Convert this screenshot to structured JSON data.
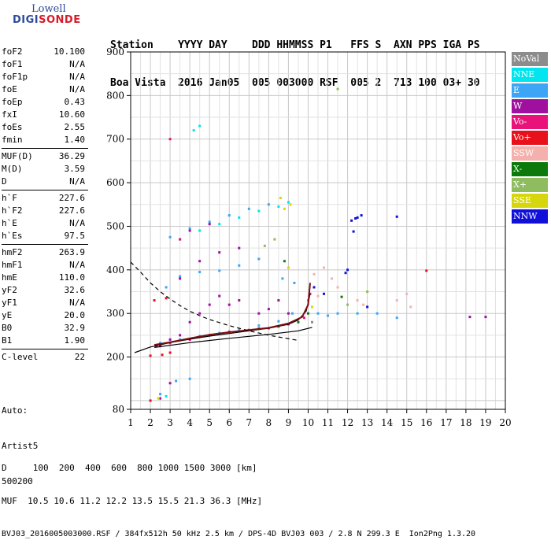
{
  "logo": {
    "line1": "Lowell",
    "line2_a": "DIGI",
    "line2_b": "SONDE"
  },
  "header": {
    "line1": "Station    YYYY DAY    DDD HHMMSS P1   FFS S  AXN PPS IGA PS",
    "line2": "Boa Vista  2016 Jan05  005 003000 RSF  005 2  713 100 03+ 30"
  },
  "params": [
    [
      {
        "k": "foF2",
        "v": "10.100"
      },
      {
        "k": "foF1",
        "v": "N/A"
      },
      {
        "k": "foF1p",
        "v": "N/A"
      },
      {
        "k": "foE",
        "v": "N/A"
      },
      {
        "k": "foEp",
        "v": "0.43"
      },
      {
        "k": "fxI",
        "v": "10.60"
      },
      {
        "k": "foEs",
        "v": "2.55"
      },
      {
        "k": "fmin",
        "v": "1.40"
      }
    ],
    [
      {
        "k": "MUF(D)",
        "v": "36.29"
      },
      {
        "k": "M(D)",
        "v": "3.59"
      },
      {
        "k": "D",
        "v": "N/A"
      }
    ],
    [
      {
        "k": "h`F",
        "v": "227.6"
      },
      {
        "k": "h`F2",
        "v": "227.6"
      },
      {
        "k": "h`E",
        "v": "N/A"
      },
      {
        "k": "h`Es",
        "v": "97.5"
      }
    ],
    [
      {
        "k": "hmF2",
        "v": "263.9"
      },
      {
        "k": "hmF1",
        "v": "N/A"
      },
      {
        "k": "hmE",
        "v": "110.0"
      },
      {
        "k": "yF2",
        "v": "32.6"
      },
      {
        "k": "yF1",
        "v": "N/A"
      },
      {
        "k": "yE",
        "v": "20.0"
      },
      {
        "k": "B0",
        "v": "32.9"
      },
      {
        "k": "B1",
        "v": "1.90"
      }
    ],
    [
      {
        "k": "C-level",
        "v": "22"
      }
    ]
  ],
  "auto": {
    "l1": "Auto:",
    "l2": "Artist5",
    "l3": "500200"
  },
  "footer": {
    "d_row": "D     100  200  400  600  800 1000 1500 3000 [km]",
    "muf_row": "MUF  10.5 10.6 11.2 12.2 13.5 15.5 21.3 36.3 [MHz]",
    "file_row": "BVJ03_2016005003000.RSF / 384fx512h 50 kHz 2.5 km / DPS-4D BVJ03 003 / 2.8 N 299.3 E  Ion2Png 1.3.20"
  },
  "legend": [
    {
      "label": "NoVal",
      "color": "#8c8c8c"
    },
    {
      "label": "NNE",
      "color": "#00e5ee"
    },
    {
      "label": "E",
      "color": "#3da5f5"
    },
    {
      "label": "W",
      "color": "#a0109e"
    },
    {
      "label": "Vo-",
      "color": "#e8127a"
    },
    {
      "label": "Vo+",
      "color": "#e8101a"
    },
    {
      "label": "SSW",
      "color": "#f4b0ac"
    },
    {
      "label": "X-",
      "color": "#0b7a0b"
    },
    {
      "label": "X+",
      "color": "#8ebc5e"
    },
    {
      "label": "SSE",
      "color": "#d6d60e"
    },
    {
      "label": "NNW",
      "color": "#1010d8"
    }
  ],
  "chart_data": {
    "type": "scatter",
    "xlabel": "",
    "ylabel": "",
    "xlim": [
      1,
      20
    ],
    "ylim": [
      80,
      900
    ],
    "x_ticks": [
      "1",
      "2",
      "3",
      "4",
      "5",
      "6",
      "7",
      "8",
      "9",
      "10",
      "11",
      "12",
      "13",
      "14",
      "15",
      "16",
      "17",
      "18",
      "19",
      "20"
    ],
    "y_ticks": [
      "80",
      "200",
      "300",
      "400",
      "500",
      "600",
      "700",
      "800",
      "900"
    ],
    "series": [
      {
        "name": "E",
        "color": "#3da5f5",
        "points": [
          [
            2.5,
            232
          ],
          [
            3.5,
            240
          ],
          [
            4.5,
            248
          ],
          [
            5.5,
            255
          ],
          [
            6.5,
            262
          ],
          [
            7.5,
            272
          ],
          [
            8.5,
            282
          ],
          [
            9.2,
            300
          ],
          [
            10.0,
            330
          ],
          [
            10.5,
            300
          ],
          [
            11.0,
            295
          ],
          [
            11.5,
            300
          ],
          [
            12.5,
            300
          ],
          [
            13.5,
            300
          ],
          [
            14.5,
            290
          ],
          [
            8.7,
            380
          ],
          [
            9.3,
            370
          ],
          [
            2.8,
            360
          ],
          [
            3.5,
            385
          ],
          [
            4.5,
            395
          ],
          [
            5.5,
            398
          ],
          [
            6.5,
            410
          ],
          [
            7.5,
            425
          ],
          [
            3.0,
            475
          ],
          [
            4.0,
            495
          ],
          [
            5.0,
            510
          ],
          [
            6.0,
            525
          ],
          [
            7.0,
            540
          ],
          [
            8.0,
            550
          ],
          [
            4.0,
            150
          ],
          [
            3.3,
            145
          ],
          [
            2.5,
            115
          ]
        ]
      },
      {
        "name": "NNE",
        "color": "#00e5ee",
        "points": [
          [
            3.5,
            470
          ],
          [
            4.5,
            490
          ],
          [
            5.5,
            505
          ],
          [
            6.5,
            520
          ],
          [
            7.5,
            535
          ],
          [
            8.5,
            545
          ],
          [
            9.0,
            555
          ],
          [
            4.2,
            720
          ],
          [
            4.5,
            730
          ],
          [
            2.8,
            110
          ]
        ]
      },
      {
        "name": "W",
        "color": "#a0109e",
        "points": [
          [
            2.5,
            225
          ],
          [
            3.0,
            240
          ],
          [
            3.5,
            250
          ],
          [
            4.0,
            280
          ],
          [
            4.5,
            300
          ],
          [
            5.0,
            320
          ],
          [
            5.5,
            340
          ],
          [
            6.0,
            320
          ],
          [
            6.5,
            330
          ],
          [
            7.5,
            300
          ],
          [
            8.0,
            310
          ],
          [
            8.5,
            330
          ],
          [
            9.0,
            300
          ],
          [
            3.5,
            380
          ],
          [
            4.5,
            420
          ],
          [
            5.5,
            440
          ],
          [
            6.5,
            450
          ],
          [
            4.0,
            490
          ],
          [
            5.0,
            505
          ],
          [
            18.2,
            292
          ],
          [
            19.0,
            292
          ],
          [
            3.0,
            140
          ],
          [
            2.5,
            105
          ]
        ]
      },
      {
        "name": "Vo-",
        "color": "#e8127a",
        "points": [
          [
            2.3,
            225
          ],
          [
            3.0,
            232
          ],
          [
            4.0,
            240
          ],
          [
            5.0,
            250
          ],
          [
            6.0,
            258
          ],
          [
            7.0,
            262
          ],
          [
            8.0,
            266
          ],
          [
            9.0,
            275
          ],
          [
            9.8,
            290
          ],
          [
            10.1,
            345
          ],
          [
            3.5,
            470
          ],
          [
            3.0,
            700
          ]
        ]
      },
      {
        "name": "Vo+",
        "color": "#e8101a",
        "points": [
          [
            2.0,
            203
          ],
          [
            2.6,
            205
          ],
          [
            3.0,
            210
          ],
          [
            2.2,
            330
          ],
          [
            2.8,
            335
          ],
          [
            2.0,
            100
          ],
          [
            16.0,
            398
          ]
        ]
      },
      {
        "name": "SSW",
        "color": "#f4b0ac",
        "points": [
          [
            10.3,
            390
          ],
          [
            10.8,
            405
          ],
          [
            11.2,
            380
          ],
          [
            10.5,
            340
          ],
          [
            12.5,
            330
          ],
          [
            12.8,
            320
          ],
          [
            14.5,
            330
          ],
          [
            15.0,
            345
          ],
          [
            15.2,
            315
          ],
          [
            11.5,
            360
          ]
        ]
      },
      {
        "name": "X-",
        "color": "#0b7a0b",
        "points": [
          [
            7.5,
            265
          ],
          [
            8.5,
            270
          ],
          [
            9.5,
            280
          ],
          [
            10.0,
            300
          ],
          [
            11.7,
            338
          ],
          [
            8.8,
            420
          ]
        ]
      },
      {
        "name": "X+",
        "color": "#8ebc5e",
        "points": [
          [
            11.5,
            815
          ],
          [
            13.0,
            350
          ],
          [
            12.0,
            320
          ],
          [
            7.8,
            455
          ],
          [
            8.3,
            470
          ]
        ]
      },
      {
        "name": "SSE",
        "color": "#d6d60e",
        "points": [
          [
            8.8,
            540
          ],
          [
            9.1,
            550
          ],
          [
            8.6,
            565
          ],
          [
            9.0,
            405
          ],
          [
            2.4,
            105
          ],
          [
            10.2,
            315
          ]
        ]
      },
      {
        "name": "NNW",
        "color": "#1010d8",
        "points": [
          [
            12.2,
            513
          ],
          [
            12.4,
            518
          ],
          [
            12.5,
            520
          ],
          [
            12.7,
            525
          ],
          [
            12.3,
            488
          ],
          [
            13.0,
            315
          ],
          [
            11.9,
            393
          ],
          [
            12.0,
            400
          ],
          [
            14.5,
            522
          ],
          [
            10.8,
            345
          ],
          [
            10.3,
            360
          ]
        ]
      },
      {
        "name": "NoVal",
        "color": "#8c8c8c",
        "points": [
          [
            10.2,
            280
          ]
        ]
      }
    ],
    "profile_curve": {
      "color": "#000000",
      "points": [
        [
          1.2,
          210
        ],
        [
          2.0,
          223
        ],
        [
          3.0,
          233
        ],
        [
          4.0,
          241
        ],
        [
          5.0,
          248
        ],
        [
          6.0,
          254
        ],
        [
          7.0,
          260
        ],
        [
          8.0,
          266
        ],
        [
          9.0,
          275
        ],
        [
          9.5,
          285
        ],
        [
          9.9,
          305
        ],
        [
          10.1,
          345
        ]
      ]
    },
    "trace_curve": {
      "color": "#7a0f0f",
      "points": [
        [
          2.2,
          228
        ],
        [
          3.0,
          234
        ],
        [
          4.0,
          243
        ],
        [
          5.0,
          251
        ],
        [
          6.0,
          257
        ],
        [
          7.0,
          262
        ],
        [
          8.0,
          267
        ],
        [
          9.0,
          277
        ],
        [
          9.7,
          292
        ],
        [
          10.0,
          320
        ],
        [
          10.1,
          370
        ]
      ]
    },
    "lower_curve": {
      "color": "#000000",
      "points": [
        [
          2.2,
          222
        ],
        [
          4.0,
          233
        ],
        [
          6.0,
          243
        ],
        [
          8.0,
          252
        ],
        [
          9.5,
          260
        ],
        [
          10.2,
          268
        ]
      ]
    },
    "dashed_curve": {
      "color": "#000000",
      "points": [
        [
          1.0,
          418
        ],
        [
          1.5,
          395
        ],
        [
          2.0,
          370
        ],
        [
          2.5,
          350
        ],
        [
          3.0,
          333
        ],
        [
          3.5,
          318
        ],
        [
          4.0,
          305
        ],
        [
          4.5,
          295
        ],
        [
          5.0,
          286
        ],
        [
          5.5,
          279
        ],
        [
          6.0,
          272
        ],
        [
          6.5,
          266
        ],
        [
          7.0,
          260
        ],
        [
          7.5,
          255
        ],
        [
          8.0,
          250
        ],
        [
          8.5,
          246
        ],
        [
          9.0,
          242
        ],
        [
          9.5,
          238
        ]
      ]
    }
  }
}
